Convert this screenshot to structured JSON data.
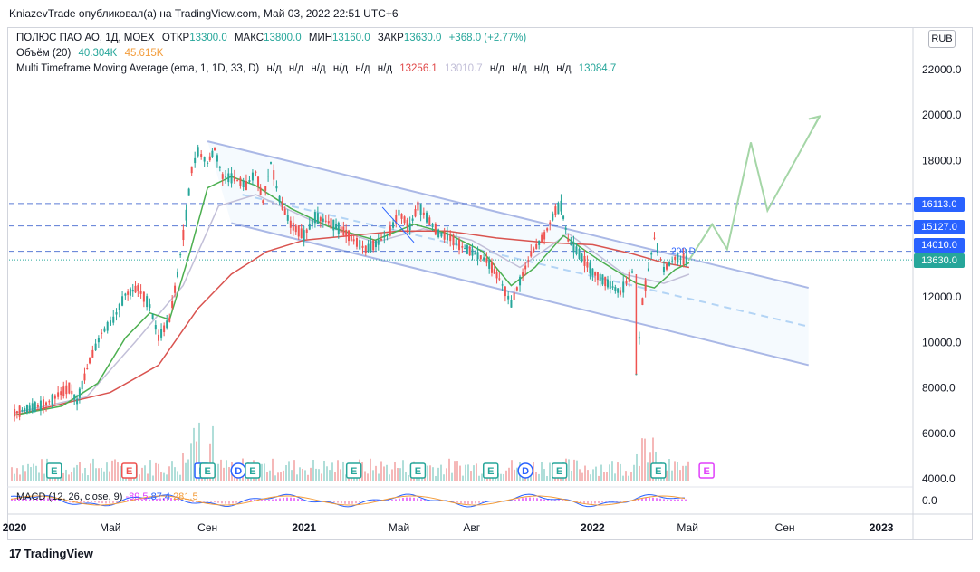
{
  "header": {
    "text": "KniazevTrade опубликовал(а) на TradingView.com, Май 03, 2022 22:51 UTC+6"
  },
  "legend": {
    "symbol": "ПОЛЮС ПАО АО, 1Д, MOEX",
    "open_label": "ОТКР",
    "open": "13300.0",
    "high_label": "МАКС",
    "high": "13800.0",
    "low_label": "МИН",
    "low": "13160.0",
    "close_label": "ЗАКР",
    "close": "13630.0",
    "change": "+368.0 (+2.77%)",
    "volume_label": "Объём (20)",
    "volume_value": "40.304K",
    "volume_ma": "45.615K",
    "mtma_label": "Multi Timeframe Moving Average (ema, 1, 1D, 33, D)",
    "na": "н/д",
    "mtma_v1": "13256.1",
    "mtma_v2": "13010.7",
    "mtma_v3": "13084.7"
  },
  "macd_legend": {
    "label": "MACD (12, 26, close, 9)",
    "v1": "-89.5",
    "v2": "87.4",
    "v3": "281.5"
  },
  "currency": "RUB",
  "footer": {
    "brand": "TradingView"
  },
  "price_tags": [
    {
      "value": "16113.0",
      "color": "#2962ff"
    },
    {
      "value": "15127.0",
      "color": "#2962ff"
    },
    {
      "value": "14010.0",
      "color": "#2962ff"
    },
    {
      "value": "13630.0",
      "color": "#26a69a"
    }
  ],
  "chart_data": {
    "type": "line",
    "y_axis": {
      "ticks": [
        4000,
        6000,
        8000,
        10000,
        12000,
        14000,
        16000,
        18000,
        20000,
        22000
      ],
      "tick_labels": [
        "4000.0",
        "6000.0",
        "8000.0",
        "10000.0",
        "12000.0",
        "14000.0",
        "16000.0",
        "18000.0",
        "20000.0",
        "22000.0"
      ],
      "ylim": [
        3600,
        23000
      ]
    },
    "x_axis": {
      "labels": [
        "2020",
        "Май",
        "Сен",
        "2021",
        "Май",
        "Авг",
        "2022",
        "Май",
        "Сен",
        "2023"
      ],
      "dates": [
        "2020-01-01",
        "2020-05-01",
        "2020-09-01",
        "2021-01-01",
        "2021-05-01",
        "2021-08-01",
        "2022-01-01",
        "2022-05-01",
        "2022-09-01",
        "2023-01-01"
      ],
      "bold": [
        "2020",
        "2021",
        "2022",
        "2023"
      ],
      "xlim": [
        "2019-12-25",
        "2023-02-10"
      ]
    },
    "horizontal_levels": [
      16113,
      15127,
      14010,
      13630
    ],
    "channel": {
      "upper": [
        [
          "2020-09-01",
          18850
        ],
        [
          "2022-10-01",
          12400
        ]
      ],
      "middle": [
        [
          "2020-10-15",
          16500
        ],
        [
          "2022-10-01",
          10700
        ]
      ],
      "lower": [
        [
          "2020-10-01",
          15250
        ],
        [
          "2022-10-01",
          9000
        ]
      ]
    },
    "price_series": [
      [
        "2020-01-01",
        6900
      ],
      [
        "2020-01-20",
        7100
      ],
      [
        "2020-02-10",
        7300
      ],
      [
        "2020-02-25",
        7700
      ],
      [
        "2020-03-10",
        8000
      ],
      [
        "2020-03-20",
        7400
      ],
      [
        "2020-04-05",
        9200
      ],
      [
        "2020-04-20",
        10400
      ],
      [
        "2020-05-05",
        11000
      ],
      [
        "2020-05-20",
        12100
      ],
      [
        "2020-06-05",
        12400
      ],
      [
        "2020-06-20",
        11600
      ],
      [
        "2020-07-01",
        10200
      ],
      [
        "2020-07-15",
        11000
      ],
      [
        "2020-07-25",
        13000
      ],
      [
        "2020-08-05",
        15600
      ],
      [
        "2020-08-12",
        17600
      ],
      [
        "2020-08-20",
        18400
      ],
      [
        "2020-09-01",
        17900
      ],
      [
        "2020-09-10",
        18500
      ],
      [
        "2020-09-20",
        17300
      ],
      [
        "2020-10-05",
        17200
      ],
      [
        "2020-10-20",
        16900
      ],
      [
        "2020-11-01",
        17500
      ],
      [
        "2020-11-10",
        16200
      ],
      [
        "2020-11-20",
        17900
      ],
      [
        "2020-12-01",
        16300
      ],
      [
        "2020-12-15",
        15200
      ],
      [
        "2021-01-01",
        14700
      ],
      [
        "2021-01-15",
        15500
      ],
      [
        "2021-02-01",
        15300
      ],
      [
        "2021-02-20",
        14900
      ],
      [
        "2021-03-05",
        14500
      ],
      [
        "2021-03-20",
        14100
      ],
      [
        "2021-04-05",
        14400
      ],
      [
        "2021-04-20",
        14900
      ],
      [
        "2021-05-01",
        15700
      ],
      [
        "2021-05-15",
        15100
      ],
      [
        "2021-05-25",
        16000
      ],
      [
        "2021-06-05",
        15500
      ],
      [
        "2021-06-20",
        14800
      ],
      [
        "2021-07-05",
        14600
      ],
      [
        "2021-07-20",
        14200
      ],
      [
        "2021-08-05",
        13900
      ],
      [
        "2021-08-20",
        13600
      ],
      [
        "2021-09-05",
        12800
      ],
      [
        "2021-09-20",
        11700
      ],
      [
        "2021-10-01",
        12700
      ],
      [
        "2021-10-15",
        13900
      ],
      [
        "2021-11-01",
        14700
      ],
      [
        "2021-11-15",
        15800
      ],
      [
        "2021-11-22",
        16000
      ],
      [
        "2021-12-01",
        14500
      ],
      [
        "2021-12-15",
        13900
      ],
      [
        "2022-01-01",
        13100
      ],
      [
        "2022-01-20",
        12600
      ],
      [
        "2022-02-05",
        12200
      ],
      [
        "2022-02-20",
        13100
      ],
      [
        "2022-02-25",
        8600
      ],
      [
        "2022-03-05",
        11800
      ],
      [
        "2022-03-20",
        14600
      ],
      [
        "2022-04-01",
        13200
      ],
      [
        "2022-04-15",
        13700
      ],
      [
        "2022-05-03",
        13630
      ]
    ],
    "ema_fast": [
      [
        "2020-01-01",
        6800
      ],
      [
        "2020-03-01",
        7200
      ],
      [
        "2020-04-15",
        8200
      ],
      [
        "2020-05-20",
        10200
      ],
      [
        "2020-06-20",
        11300
      ],
      [
        "2020-07-15",
        11000
      ],
      [
        "2020-08-10",
        14000
      ],
      [
        "2020-09-01",
        16800
      ],
      [
        "2020-10-01",
        17300
      ],
      [
        "2020-11-01",
        16900
      ],
      [
        "2020-12-15",
        15900
      ],
      [
        "2021-02-01",
        15100
      ],
      [
        "2021-04-01",
        14500
      ],
      [
        "2021-05-20",
        15200
      ],
      [
        "2021-07-01",
        14800
      ],
      [
        "2021-08-15",
        14000
      ],
      [
        "2021-09-20",
        12500
      ],
      [
        "2021-10-20",
        13300
      ],
      [
        "2021-11-25",
        14700
      ],
      [
        "2022-01-10",
        13600
      ],
      [
        "2022-02-25",
        12600
      ],
      [
        "2022-03-20",
        12400
      ],
      [
        "2022-04-15",
        13200
      ],
      [
        "2022-05-03",
        13500
      ]
    ],
    "ema_slow": [
      [
        "2020-01-01",
        6800
      ],
      [
        "2020-05-01",
        7800
      ],
      [
        "2020-07-01",
        9000
      ],
      [
        "2020-08-20",
        11500
      ],
      [
        "2020-10-01",
        13000
      ],
      [
        "2020-11-15",
        14000
      ],
      [
        "2021-01-01",
        14500
      ],
      [
        "2021-03-01",
        14700
      ],
      [
        "2021-05-01",
        14900
      ],
      [
        "2021-07-01",
        14900
      ],
      [
        "2021-09-01",
        14600
      ],
      [
        "2021-11-01",
        14400
      ],
      [
        "2022-01-01",
        14300
      ],
      [
        "2022-02-20",
        13900
      ],
      [
        "2022-04-01",
        13500
      ],
      [
        "2022-05-03",
        13300
      ]
    ],
    "mtma_line": [
      [
        "2020-01-01",
        6900
      ],
      [
        "2020-04-01",
        7600
      ],
      [
        "2020-06-01",
        10000
      ],
      [
        "2020-08-01",
        12500
      ],
      [
        "2020-09-15",
        16000
      ],
      [
        "2020-11-01",
        16500
      ],
      [
        "2021-01-15",
        15300
      ],
      [
        "2021-04-01",
        14400
      ],
      [
        "2021-06-01",
        15000
      ],
      [
        "2021-08-01",
        14500
      ],
      [
        "2021-10-01",
        13300
      ],
      [
        "2021-12-01",
        14800
      ],
      [
        "2022-02-10",
        13000
      ],
      [
        "2022-04-01",
        12600
      ],
      [
        "2022-05-03",
        13000
      ]
    ],
    "forecast_path": [
      [
        "2022-05-03",
        13630
      ],
      [
        "2022-06-01",
        15200
      ],
      [
        "2022-06-20",
        14100
      ],
      [
        "2022-07-20",
        18800
      ],
      [
        "2022-08-10",
        15800
      ],
      [
        "2022-10-15",
        19950
      ]
    ],
    "ma200_label": "200 D",
    "earnings_markers": [
      {
        "date": "2020-02-20",
        "type": "E",
        "color": "green"
      },
      {
        "date": "2020-05-25",
        "type": "E",
        "color": "red"
      },
      {
        "date": "2020-08-25",
        "type": "E",
        "color": "blue"
      },
      {
        "date": "2020-09-01",
        "type": "E",
        "color": "green"
      },
      {
        "date": "2020-10-10",
        "type": "D",
        "color": "blue"
      },
      {
        "date": "2020-10-28",
        "type": "E",
        "color": "green"
      },
      {
        "date": "2021-03-05",
        "type": "E",
        "color": "green"
      },
      {
        "date": "2021-05-25",
        "type": "E",
        "color": "green"
      },
      {
        "date": "2021-08-25",
        "type": "E",
        "color": "green"
      },
      {
        "date": "2021-10-08",
        "type": "D",
        "color": "blue"
      },
      {
        "date": "2021-11-20",
        "type": "E",
        "color": "green"
      },
      {
        "date": "2022-03-25",
        "type": "E",
        "color": "green"
      },
      {
        "date": "2022-05-25",
        "type": "E",
        "color": "magenta"
      }
    ],
    "volume_ylim": [
      0,
      1
    ],
    "macd_zero_label": "0.0"
  }
}
